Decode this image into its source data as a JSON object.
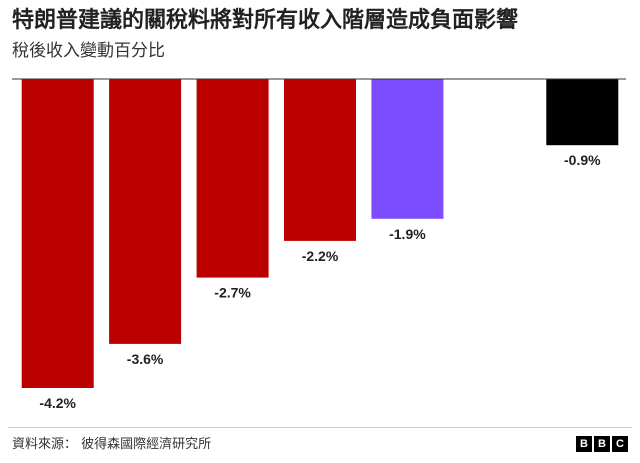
{
  "title": "特朗普建議的關稅料將對所有收入階層造成負面影響",
  "subtitle": "稅後收入變動百分比",
  "source": "資料來源： 彼得森國際經濟研究所",
  "logo": [
    "B",
    "B",
    "C"
  ],
  "colors": {
    "red": "#bb0000",
    "purple": "#7b4dff",
    "black": "#000000",
    "axis": "#333333"
  },
  "chart_data": {
    "type": "bar",
    "categories": [
      "",
      "",
      "",
      "",
      "",
      "",
      ""
    ],
    "values": [
      -4.2,
      -3.6,
      -2.7,
      -2.2,
      -1.9,
      null,
      -0.9
    ],
    "data_labels": [
      "-4.2%",
      "-3.6%",
      "-2.7%",
      "-2.2%",
      "-1.9%",
      "",
      "-0.9%"
    ],
    "bar_colors": [
      "red",
      "red",
      "red",
      "red",
      "purple",
      "",
      "black"
    ],
    "ylim": [
      -4.2,
      0
    ],
    "grid": false,
    "legend": "none"
  }
}
